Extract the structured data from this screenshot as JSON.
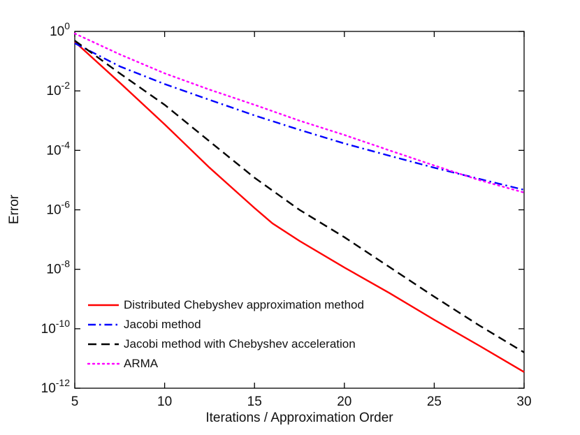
{
  "figure": {
    "background": "#ffffff"
  },
  "chart_data": {
    "type": "line",
    "title": "",
    "xlabel": "Iterations / Approximation Order",
    "ylabel": "Error",
    "xlim": [
      5,
      30
    ],
    "ylim_exponents": [
      -12,
      0
    ],
    "x_ticks": [
      5,
      10,
      15,
      20,
      25,
      30
    ],
    "y_tick_exponents": [
      0,
      -2,
      -4,
      -6,
      -8,
      -10,
      -12
    ],
    "y_tick_base": "10",
    "grid": false,
    "legend_position": "inside-bottom-left",
    "axis_color": "#000000",
    "series": [
      {
        "name": "Distributed Chebyshev approximation method",
        "color": "#ff0000",
        "style": "solid",
        "x": [
          5,
          7.5,
          10,
          12.5,
          15,
          16,
          17.5,
          20,
          22.5,
          25,
          27.5,
          30
        ],
        "y": [
          0.45,
          0.019,
          0.00075,
          2.6e-05,
          1.15e-06,
          3.5e-07,
          9e-08,
          1.15e-08,
          1.6e-09,
          2e-10,
          2.7e-11,
          3.5e-12
        ]
      },
      {
        "name": "Jacobi method",
        "color": "#0000ff",
        "style": "dash-dot",
        "x": [
          5,
          7.5,
          10,
          12.5,
          15,
          17.5,
          20,
          22.5,
          25,
          27.5,
          30
        ],
        "y": [
          0.4,
          0.067,
          0.017,
          0.005,
          0.0015,
          0.00049,
          0.00017,
          6.6e-05,
          2.6e-05,
          1.1e-05,
          4.7e-06
        ]
      },
      {
        "name": "Jacobi method with Chebyshev acceleration",
        "color": "#000000",
        "style": "dashed",
        "x": [
          5,
          7.5,
          10,
          12.5,
          15,
          17.5,
          20,
          22.5,
          25,
          27.5,
          30
        ],
        "y": [
          0.49,
          0.039,
          0.0034,
          0.0002,
          1.2e-05,
          1e-06,
          1.2e-07,
          1.2e-08,
          1.2e-09,
          1.3e-10,
          1.6e-11
        ]
      },
      {
        "name": "ARMA",
        "color": "#ff00ff",
        "style": "dotted",
        "x": [
          5,
          7.5,
          10,
          12.5,
          15,
          17.5,
          20,
          22.5,
          25,
          27.5,
          30
        ],
        "y": [
          0.85,
          0.17,
          0.039,
          0.011,
          0.0034,
          0.001,
          0.00033,
          0.0001,
          3.1e-05,
          1e-05,
          3.8e-06
        ]
      }
    ]
  }
}
